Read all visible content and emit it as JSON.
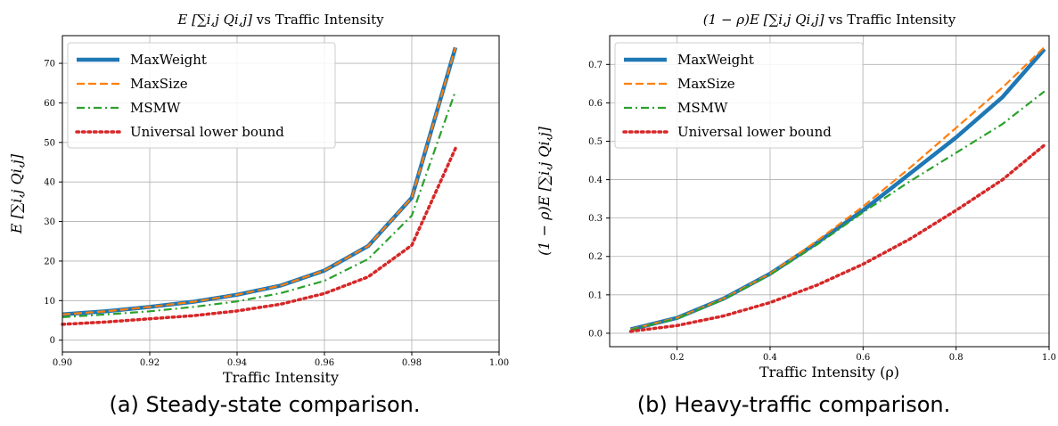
{
  "figures": [
    {
      "caption": "(a) Steady-state comparison.",
      "chart_data": {
        "type": "line",
        "title_math": "E [∑i,j Qi,j]",
        "title_text": "vs Traffic Intensity",
        "xlabel": "Traffic Intensity",
        "ylabel": "E [∑i,j Qi,j]",
        "xlim": [
          0.9,
          1.0
        ],
        "ylim": [
          -3,
          77
        ],
        "xticks": [
          0.9,
          0.92,
          0.94,
          0.96,
          0.98,
          1.0
        ],
        "xtick_labels": [
          "0.90",
          "0.92",
          "0.94",
          "0.96",
          "0.98",
          "1.00"
        ],
        "yticks": [
          0,
          10,
          20,
          30,
          40,
          50,
          60,
          70
        ],
        "ytick_labels": [
          "0",
          "10",
          "20",
          "30",
          "40",
          "50",
          "60",
          "70"
        ],
        "grid": true,
        "legend_position": "top-left",
        "x": [
          0.9,
          0.91,
          0.92,
          0.93,
          0.94,
          0.95,
          0.96,
          0.97,
          0.98,
          0.99
        ],
        "series": [
          {
            "name": "MaxWeight",
            "values": [
              6.5,
              7.3,
              8.4,
              9.7,
              11.5,
              13.8,
              17.6,
              23.8,
              36.0,
              74.0
            ],
            "color": "#1f77b4",
            "style": "solid"
          },
          {
            "name": "MaxSize",
            "values": [
              6.5,
              7.3,
              8.4,
              9.7,
              11.5,
              13.8,
              17.6,
              23.8,
              36.0,
              74.0
            ],
            "color": "#ff7f0e",
            "style": "dashed"
          },
          {
            "name": "MSMW",
            "values": [
              5.8,
              6.5,
              7.3,
              8.4,
              9.8,
              11.9,
              15.0,
              20.5,
              31.5,
              63.0
            ],
            "color": "#2ca02c",
            "style": "dashdot"
          },
          {
            "name": "Universal lower bound",
            "values": [
              4.0,
              4.6,
              5.4,
              6.2,
              7.4,
              9.1,
              11.8,
              16.0,
              24.0,
              48.5
            ],
            "color": "#d62728",
            "style": "dotted"
          }
        ]
      }
    },
    {
      "caption": "(b) Heavy-traffic comparison.",
      "chart_data": {
        "type": "line",
        "title_math": "(1 − ρ)E [∑i,j Qi,j]",
        "title_text": "vs Traffic Intensity",
        "xlabel": "Traffic Intensity (ρ)",
        "ylabel": "(1 − ρ)E [∑i,j Qi,j]",
        "xlim": [
          0.055,
          1.0
        ],
        "ylim": [
          -0.035,
          0.775
        ],
        "xticks": [
          0.2,
          0.4,
          0.6,
          0.8,
          1.0
        ],
        "xtick_labels": [
          "0.2",
          "0.4",
          "0.6",
          "0.8",
          "1.0"
        ],
        "yticks": [
          0.0,
          0.1,
          0.2,
          0.3,
          0.4,
          0.5,
          0.6,
          0.7
        ],
        "ytick_labels": [
          "0.0",
          "0.1",
          "0.2",
          "0.3",
          "0.4",
          "0.5",
          "0.6",
          "0.7"
        ],
        "grid": true,
        "legend_position": "top-left",
        "x": [
          0.1,
          0.2,
          0.3,
          0.4,
          0.5,
          0.6,
          0.7,
          0.8,
          0.9,
          0.99
        ],
        "series": [
          {
            "name": "MaxWeight",
            "values": [
              0.01,
              0.04,
              0.09,
              0.155,
              0.235,
              0.32,
              0.415,
              0.51,
              0.615,
              0.74
            ],
            "color": "#1f77b4",
            "style": "solid"
          },
          {
            "name": "MaxSize",
            "values": [
              0.01,
              0.04,
              0.09,
              0.155,
              0.24,
              0.33,
              0.43,
              0.535,
              0.64,
              0.745
            ],
            "color": "#ff7f0e",
            "style": "dashed"
          },
          {
            "name": "MSMW",
            "values": [
              0.009,
              0.038,
              0.088,
              0.152,
              0.23,
              0.315,
              0.395,
              0.47,
              0.545,
              0.63
            ],
            "color": "#2ca02c",
            "style": "dashdot"
          },
          {
            "name": "Universal lower bound",
            "values": [
              0.005,
              0.02,
              0.045,
              0.08,
              0.125,
              0.18,
              0.245,
              0.32,
              0.4,
              0.49
            ],
            "color": "#d62728",
            "style": "dotted"
          }
        ]
      }
    }
  ]
}
